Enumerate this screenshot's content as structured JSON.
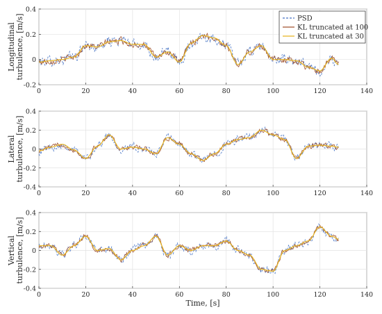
{
  "chart_data": [
    {
      "type": "line",
      "ylabel_lines": [
        "Longitudinal",
        "turbulence, [m/s]"
      ],
      "xlabel": "",
      "xlim": [
        0,
        140
      ],
      "ylim": [
        -0.2,
        0.4
      ],
      "xticks": [
        0,
        20,
        40,
        60,
        80,
        100,
        120,
        140
      ],
      "yticks": [
        -0.2,
        0,
        0.2,
        0.4
      ],
      "grid": true,
      "legend_position": "top-right",
      "series": [
        {
          "name": "PSD",
          "color": "#4472C4",
          "style": "dashed",
          "noise": 0.035
        },
        {
          "name": "KL truncated at 100",
          "color": "#A0522D",
          "style": "solid",
          "noise": 0.022
        },
        {
          "name": "KL truncated at 30",
          "color": "#E6B422",
          "style": "solid",
          "noise": 0.0
        }
      ],
      "x": [
        0,
        5,
        10,
        15,
        20,
        25,
        30,
        35,
        40,
        45,
        50,
        55,
        60,
        65,
        70,
        75,
        80,
        85,
        90,
        95,
        100,
        105,
        110,
        115,
        120,
        125,
        128
      ],
      "trend": [
        -0.02,
        -0.01,
        0.0,
        0.02,
        0.11,
        0.1,
        0.14,
        0.15,
        0.12,
        0.12,
        0.02,
        0.06,
        -0.02,
        0.13,
        0.19,
        0.17,
        0.11,
        -0.04,
        0.06,
        0.11,
        0.0,
        0.0,
        -0.01,
        -0.06,
        -0.09,
        0.01,
        -0.04
      ]
    },
    {
      "type": "line",
      "ylabel_lines": [
        "Lateral",
        "turbulence, [m/s]"
      ],
      "xlabel": "",
      "xlim": [
        0,
        140
      ],
      "ylim": [
        -0.4,
        0.4
      ],
      "xticks": [
        0,
        20,
        40,
        60,
        80,
        100,
        120,
        140
      ],
      "yticks": [
        -0.4,
        -0.2,
        0,
        0.2,
        0.4
      ],
      "grid": true,
      "series": [
        {
          "name": "PSD",
          "color": "#4472C4",
          "style": "dashed",
          "noise": 0.035
        },
        {
          "name": "KL truncated at 100",
          "color": "#A0522D",
          "style": "solid",
          "noise": 0.022
        },
        {
          "name": "KL truncated at 30",
          "color": "#E6B422",
          "style": "solid",
          "noise": 0.0
        }
      ],
      "x": [
        0,
        5,
        10,
        15,
        20,
        25,
        30,
        35,
        40,
        45,
        50,
        55,
        60,
        65,
        70,
        75,
        80,
        85,
        90,
        95,
        100,
        105,
        110,
        115,
        120,
        125,
        128
      ],
      "trend": [
        -0.02,
        0.02,
        0.05,
        -0.01,
        -0.1,
        0.03,
        0.15,
        0.0,
        0.02,
        0.0,
        -0.05,
        0.12,
        0.05,
        -0.05,
        -0.12,
        -0.05,
        0.05,
        0.1,
        0.12,
        0.2,
        0.15,
        0.1,
        -0.1,
        0.03,
        0.04,
        0.03,
        0.02
      ]
    },
    {
      "type": "line",
      "ylabel_lines": [
        "Vertical",
        "turbulence, [m/s]"
      ],
      "xlabel": "Time, [s]",
      "xlim": [
        0,
        140
      ],
      "ylim": [
        -0.4,
        0.4
      ],
      "xticks": [
        0,
        20,
        40,
        60,
        80,
        100,
        120,
        140
      ],
      "yticks": [
        -0.4,
        -0.2,
        0,
        0.2,
        0.4
      ],
      "grid": true,
      "series": [
        {
          "name": "PSD",
          "color": "#4472C4",
          "style": "dashed",
          "noise": 0.035
        },
        {
          "name": "KL truncated at 100",
          "color": "#A0522D",
          "style": "solid",
          "noise": 0.022
        },
        {
          "name": "KL truncated at 30",
          "color": "#E6B422",
          "style": "solid",
          "noise": 0.0
        }
      ],
      "x": [
        0,
        5,
        10,
        15,
        20,
        25,
        30,
        35,
        40,
        45,
        50,
        55,
        60,
        65,
        70,
        75,
        80,
        85,
        90,
        95,
        100,
        105,
        110,
        115,
        120,
        125,
        128
      ],
      "trend": [
        0.05,
        0.05,
        -0.05,
        0.05,
        0.15,
        0.0,
        0.02,
        -0.1,
        0.0,
        0.05,
        0.15,
        -0.05,
        0.05,
        0.0,
        0.05,
        0.05,
        0.1,
        0.0,
        -0.05,
        -0.2,
        -0.22,
        0.0,
        0.05,
        0.1,
        0.25,
        0.15,
        0.12
      ]
    }
  ]
}
